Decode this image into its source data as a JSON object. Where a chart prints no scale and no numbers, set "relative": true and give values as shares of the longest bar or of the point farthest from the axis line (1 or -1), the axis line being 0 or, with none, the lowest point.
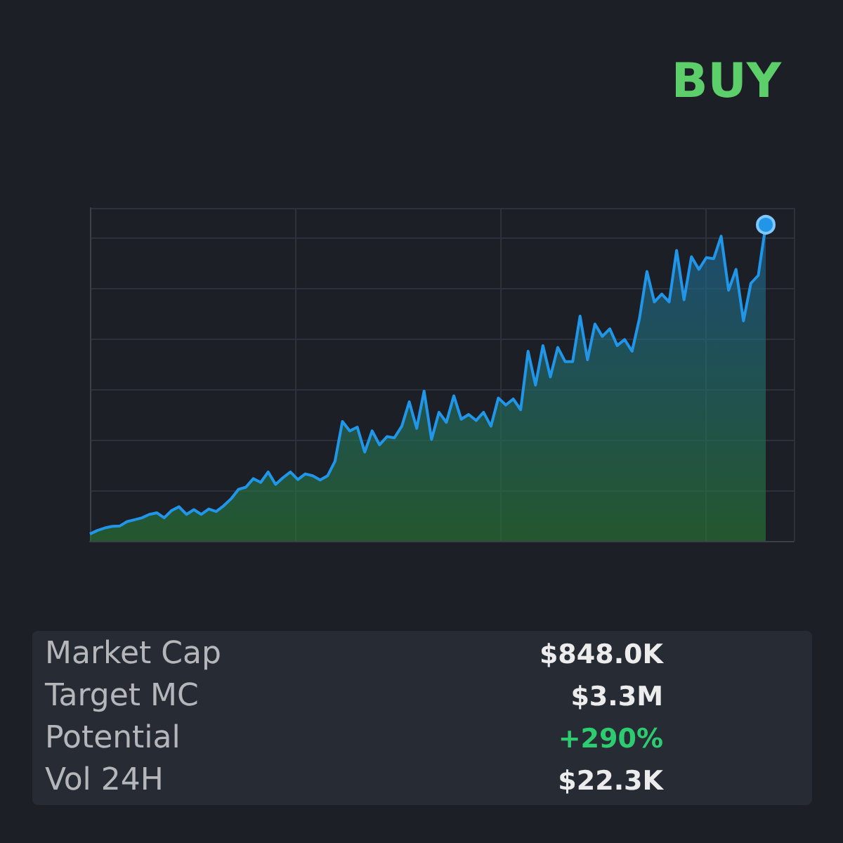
{
  "chart_data": {
    "type": "area",
    "relative": true,
    "grid": true,
    "line_style": "solid",
    "categories": [
      null,
      null,
      null,
      null,
      null,
      null,
      null,
      null,
      null,
      null,
      null,
      null,
      null,
      null,
      null,
      null,
      null,
      null,
      null,
      null,
      null,
      null,
      null,
      null,
      null,
      null,
      null,
      null,
      null,
      null,
      null,
      null,
      null,
      null,
      null,
      null,
      null,
      null,
      null,
      null,
      null,
      null,
      null,
      null,
      null,
      null,
      null,
      null,
      null,
      null,
      null,
      null,
      null,
      null,
      null,
      null,
      null,
      null,
      null,
      null,
      null,
      null,
      null,
      null,
      null,
      null,
      null,
      null,
      null,
      null,
      null,
      null,
      null,
      null,
      null,
      null,
      null,
      null,
      null,
      null,
      null,
      null,
      null,
      null,
      null,
      null,
      null,
      null,
      null,
      null,
      null,
      null
    ],
    "series": [
      {
        "color": "#2196e8",
        "values": [
          0.022,
          0.033,
          0.041,
          0.046,
          0.047,
          0.061,
          0.067,
          0.073,
          0.084,
          0.089,
          0.073,
          0.096,
          0.108,
          0.084,
          0.099,
          0.084,
          0.101,
          0.093,
          0.111,
          0.133,
          0.163,
          0.17,
          0.197,
          0.185,
          0.218,
          0.179,
          0.2,
          0.218,
          0.194,
          0.212,
          0.206,
          0.193,
          0.206,
          0.252,
          0.378,
          0.348,
          0.36,
          0.281,
          0.348,
          0.304,
          0.33,
          0.326,
          0.363,
          0.44,
          0.356,
          0.474,
          0.321,
          0.407,
          0.375,
          0.459,
          0.385,
          0.4,
          0.381,
          0.407,
          0.363,
          0.452,
          0.43,
          0.449,
          0.415,
          0.6,
          0.493,
          0.618,
          0.519,
          0.612,
          0.567,
          0.567,
          0.711,
          0.573,
          0.686,
          0.647,
          0.671,
          0.618,
          0.637,
          0.6,
          0.704,
          0.852,
          0.756,
          0.781,
          0.756,
          0.919,
          0.763,
          0.899,
          0.859,
          0.896,
          0.893,
          0.964,
          0.793,
          0.859,
          0.696,
          0.815,
          0.84,
          1
        ]
      }
    ],
    "annotations": [
      "BUY",
      "Market Cap",
      "$848.0K",
      "Target MC",
      "$3.3M",
      "Potential",
      "+290%",
      "Vol 24H",
      "$22.3K"
    ]
  }
}
